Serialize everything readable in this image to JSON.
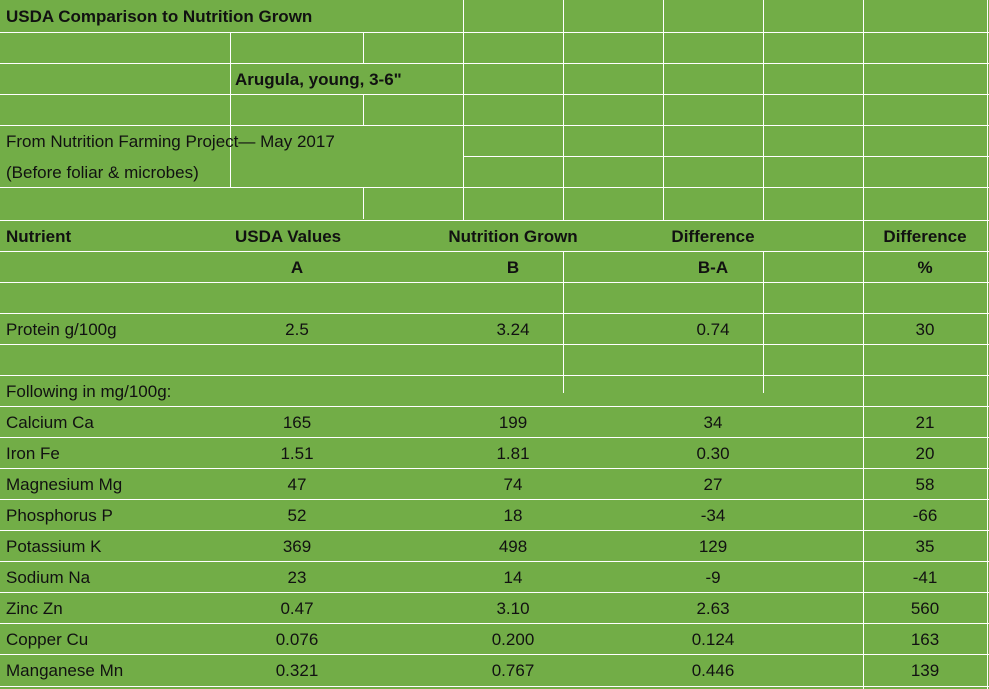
{
  "sheet": {
    "title": "USDA Comparison to Nutrition Grown",
    "subtitle": "Arugula, young, 3-6\"",
    "source_line1": "From Nutrition Farming Project— May 2017",
    "source_line2": "(Before foliar & microbes)"
  },
  "headers": {
    "nutrient": "Nutrient",
    "usda": "USDA Values",
    "grown": "Nutrition Grown",
    "diff": "Difference",
    "diff_pct": "Difference",
    "usda_sub": "A",
    "grown_sub": "B",
    "diff_sub": "B-A",
    "pct_sub": "%"
  },
  "protein": {
    "name": "Protein g/100g",
    "a": "2.5",
    "b": "3.24",
    "diff": "0.74",
    "pct": "30"
  },
  "mg_label": "Following in mg/100g:",
  "rows": [
    {
      "name": "Calcium Ca",
      "a": "165",
      "b": "199",
      "diff": "34",
      "pct": "21"
    },
    {
      "name": "Iron Fe",
      "a": "1.51",
      "b": "1.81",
      "diff": "0.30",
      "pct": "20"
    },
    {
      "name": "Magnesium Mg",
      "a": "47",
      "b": "74",
      "diff": "27",
      "pct": "58"
    },
    {
      "name": "Phosphorus P",
      "a": "52",
      "b": "18",
      "diff": "-34",
      "pct": "-66"
    },
    {
      "name": "Potassium K",
      "a": "369",
      "b": "498",
      "diff": "129",
      "pct": "35"
    },
    {
      "name": "Sodium Na",
      "a": "23",
      "b": "14",
      "diff": "-9",
      "pct": "-41"
    },
    {
      "name": "Zinc Zn",
      "a": "0.47",
      "b": "3.10",
      "diff": "2.63",
      "pct": "560"
    },
    {
      "name": "Copper Cu",
      "a": "0.076",
      "b": "0.200",
      "diff": "0.124",
      "pct": "163"
    },
    {
      "name": "Manganese Mn",
      "a": "0.321",
      "b": "0.767",
      "diff": "0.446",
      "pct": "139"
    }
  ]
}
